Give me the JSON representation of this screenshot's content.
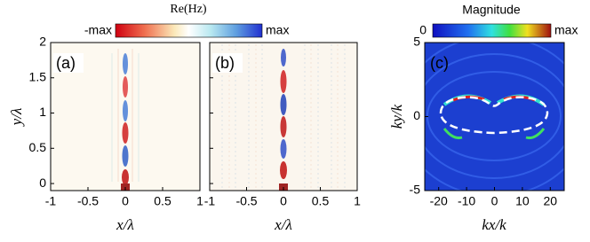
{
  "chart_data": [
    {
      "type": "heatmap",
      "label": "(a)",
      "xlabel": "x/λ",
      "ylabel": "y/λ",
      "xlim": [
        -1,
        1
      ],
      "xticks": [
        -1,
        -0.5,
        0,
        0.5,
        1
      ],
      "ylim": [
        -0.1,
        2
      ],
      "yticks": [
        0,
        0.5,
        1,
        1.5,
        2
      ]
    },
    {
      "type": "heatmap",
      "label": "(b)",
      "xlabel": "x/λ",
      "xlim": [
        -1,
        1
      ],
      "xticks": [
        -1,
        -0.5,
        0,
        0.5,
        1
      ],
      "ylim": [
        -0.1,
        2
      ],
      "yticks": [
        0,
        0.5,
        1,
        1.5,
        2
      ]
    },
    {
      "type": "heatmap",
      "label": "(c)",
      "xlabel": "kx/k",
      "ylabel": "ky/k",
      "xlim": [
        -25,
        25
      ],
      "xticks": [
        -20,
        -10,
        0,
        10,
        20
      ],
      "ylim": [
        -5,
        5
      ],
      "yticks": [
        -5,
        0,
        5
      ]
    }
  ],
  "colorbars": [
    {
      "title": "Re(Hz)",
      "min_label": "-max",
      "max_label": "max"
    },
    {
      "title": "Magnitude",
      "min_label": "0",
      "max_label": "max"
    }
  ]
}
